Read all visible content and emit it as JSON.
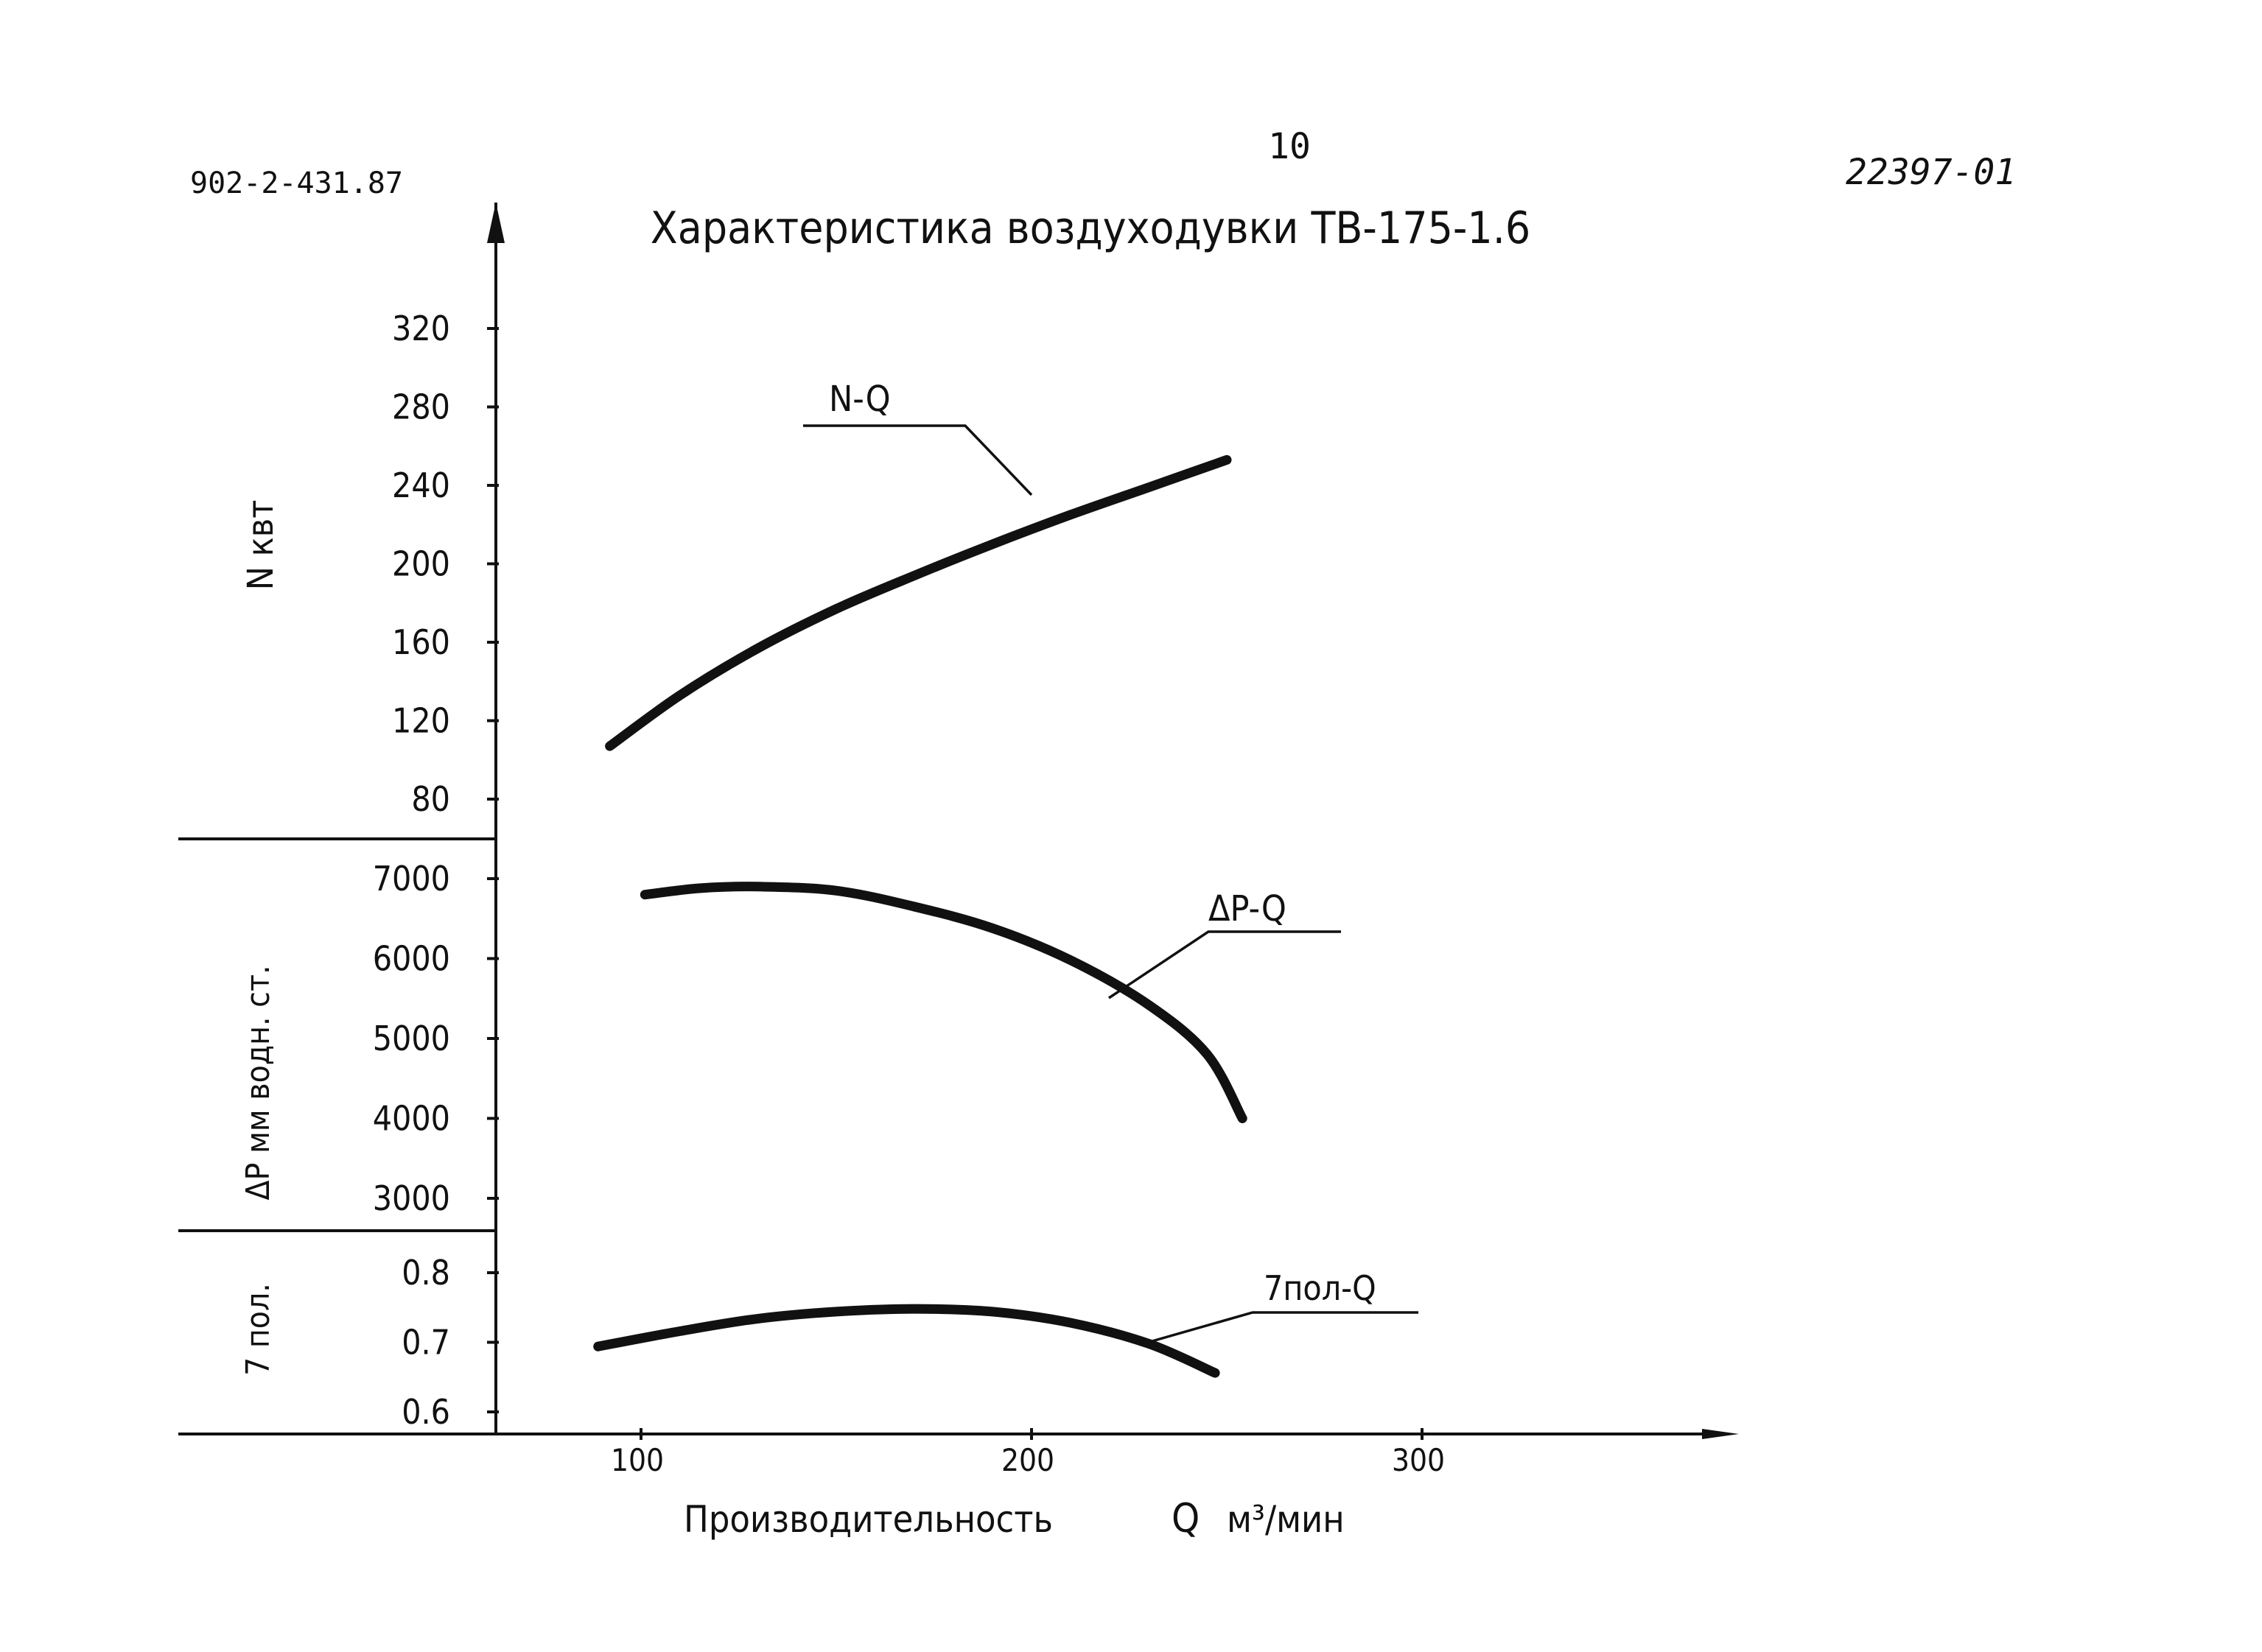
{
  "document": {
    "code_left": "902-2-431.87",
    "page_number": "10",
    "code_right": "22397-01"
  },
  "chart_data": {
    "type": "line",
    "title": "Характеристика воздуходувки ТВ-175-1.6",
    "xlabel": "Производительность",
    "xlabel_symbol": "Q",
    "xlabel_unit": "м³/мин",
    "x_ticks": [
      100,
      200,
      300
    ],
    "x_tick_labels": [
      "100",
      "200",
      "300"
    ],
    "panels": [
      {
        "name": "power",
        "ylabel": "N квт",
        "ylim": [
          80,
          320
        ],
        "y_ticks": [
          80,
          120,
          160,
          200,
          240,
          280,
          320
        ],
        "y_tick_labels": [
          "80",
          "120",
          "160",
          "200",
          "240",
          "280",
          "320"
        ],
        "series": [
          {
            "name": "N-Q",
            "x": [
              92,
              110,
              130,
              150,
              170,
              190,
              210,
              230,
              250
            ],
            "y": [
              107,
              133,
              157,
              177,
              194,
              210,
              225,
              239,
              253
            ]
          }
        ]
      },
      {
        "name": "pressure",
        "ylabel": "ΔP мм водн. ст.",
        "ylim": [
          3000,
          7000
        ],
        "y_ticks": [
          3000,
          4000,
          5000,
          6000,
          7000
        ],
        "y_tick_labels": [
          "3000",
          "4000",
          "5000",
          "6000",
          "7000"
        ],
        "series": [
          {
            "name": "ΔP-Q",
            "x": [
              101,
              115,
              130,
              150,
              170,
              190,
              210,
              230,
              245,
              254
            ],
            "y": [
              6800,
              6880,
              6900,
              6850,
              6650,
              6380,
              5980,
              5420,
              4800,
              4000
            ]
          }
        ]
      },
      {
        "name": "efficiency",
        "ylabel": "η пол.",
        "ylim": [
          0.6,
          0.8
        ],
        "y_ticks": [
          0.6,
          0.7,
          0.8
        ],
        "y_tick_labels": [
          "0.6",
          "0.7",
          "0.8"
        ],
        "series": [
          {
            "name": "η пол-Q",
            "x": [
              89,
              110,
              130,
              150,
              170,
              190,
              210,
              230,
              247
            ],
            "y": [
              0.694,
              0.716,
              0.734,
              0.744,
              0.748,
              0.744,
              0.728,
              0.698,
              0.656
            ]
          }
        ]
      }
    ],
    "curve_labels": [
      "N-Q",
      "ΔP-Q",
      "7пол-Q"
    ],
    "panel_ylabels": [
      "N квт",
      "ΔP мм водн. ст.",
      "7 пол."
    ]
  }
}
